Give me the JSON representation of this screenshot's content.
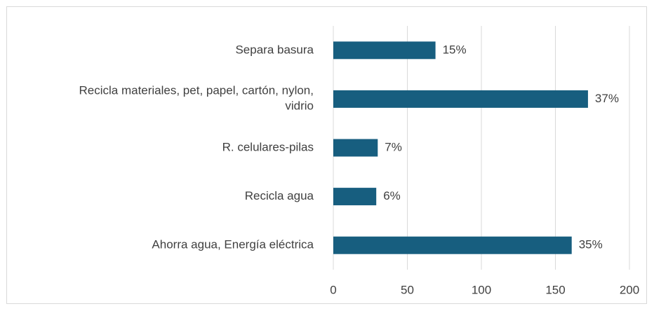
{
  "chart_data": {
    "type": "bar",
    "orientation": "horizontal",
    "categories": [
      "Separa basura",
      "Recicla materiales, pet, papel, cartón, nylon,\nvidrio",
      "R. celulares-pilas",
      "Recicla agua",
      "Ahorra agua, Energía eléctrica"
    ],
    "values": [
      69,
      172,
      30,
      29,
      161
    ],
    "value_labels": [
      "15%",
      "37%",
      "7%",
      "6%",
      "35%"
    ],
    "color": "#175e7f",
    "xlim": [
      0,
      200
    ],
    "xticks": [
      0,
      50,
      100,
      150,
      200
    ],
    "grid": true
  }
}
